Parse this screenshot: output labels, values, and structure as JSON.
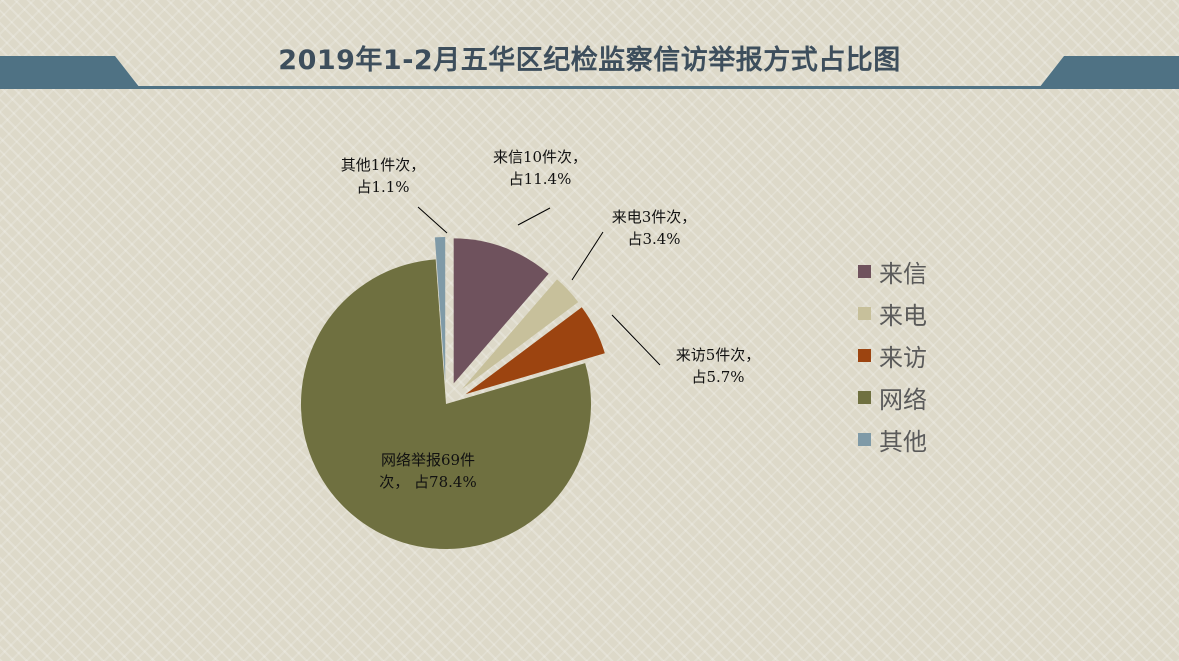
{
  "title": "2019年1-2月五华区纪检监察信访举报方式占比图",
  "chart_data": {
    "type": "pie",
    "title": "2019年1-2月五华区纪检监察信访举报方式占比图",
    "legend_position": "right",
    "slices": [
      {
        "name": "来信",
        "value": 10,
        "percent": 11.4,
        "color": "#6f525d",
        "label_lines": [
          "来信10件次，",
          "占11.4%"
        ]
      },
      {
        "name": "来电",
        "value": 3,
        "percent": 3.4,
        "color": "#c7c09b",
        "label_lines": [
          "来电3件次，",
          "占3.4%"
        ]
      },
      {
        "name": "来访",
        "value": 5,
        "percent": 5.7,
        "color": "#9c4410",
        "label_lines": [
          "来访5件次，",
          "占5.7%"
        ]
      },
      {
        "name": "网络",
        "value": 69,
        "percent": 78.4,
        "color": "#6f7040",
        "label_lines": [
          "网络举报69件",
          "次，  占78.4%"
        ]
      },
      {
        "name": "其他",
        "value": 1,
        "percent": 1.1,
        "color": "#7f9aa7",
        "label_lines": [
          "其他1件次，",
          "占1.1%"
        ]
      }
    ],
    "header_color": "#4f7284"
  }
}
